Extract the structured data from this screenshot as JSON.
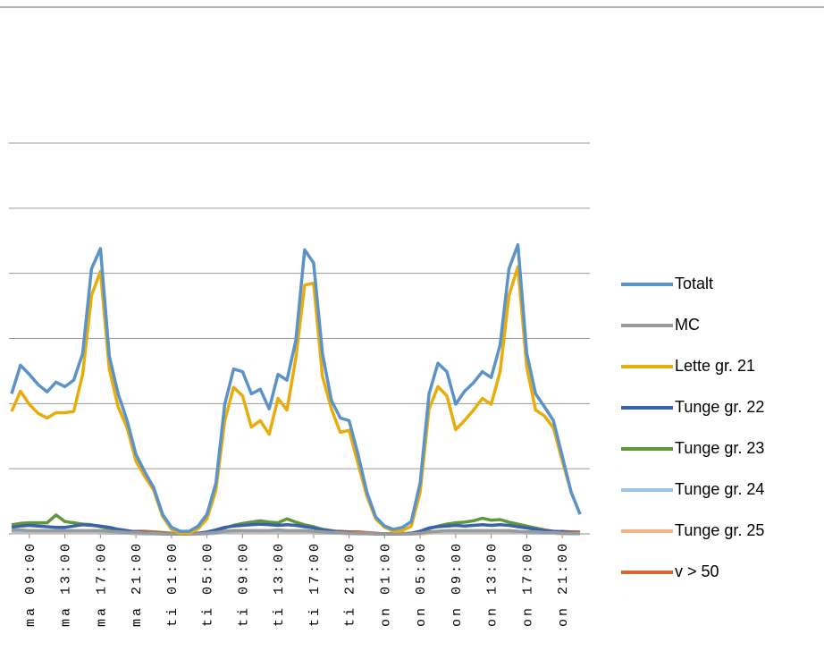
{
  "chart_data": {
    "type": "line",
    "legend": "right",
    "grid": true,
    "categories": [
      null,
      null,
      "ma 09:00",
      null,
      null,
      null,
      "ma 13:00",
      null,
      null,
      null,
      "ma 17:00",
      null,
      null,
      null,
      "ma 21:00",
      null,
      null,
      null,
      "ti 01:00",
      null,
      null,
      null,
      "ti 05:00",
      null,
      null,
      null,
      "ti 09:00",
      null,
      null,
      null,
      "ti 13:00",
      null,
      null,
      null,
      "ti 17:00",
      null,
      null,
      null,
      "ti 21:00",
      null,
      null,
      null,
      "on 01:00",
      null,
      null,
      null,
      "on 05:00",
      null,
      null,
      null,
      "on 09:00",
      null,
      null,
      null,
      "on 13:00",
      null,
      null,
      null,
      "on 17:00",
      null,
      null,
      null,
      "on 21:00",
      null,
      null
    ],
    "ylim": [
      0,
      600
    ],
    "yticks": [
      0,
      100,
      200,
      300,
      400,
      500,
      600
    ],
    "series": [
      {
        "name": "Totalt",
        "color": "#5b93c7",
        "values": [
          215,
          259,
          245,
          229,
          218,
          233,
          226,
          236,
          277,
          407,
          438,
          273,
          215,
          174,
          122,
          95,
          71,
          30,
          10,
          4,
          4,
          12,
          30,
          78,
          199,
          253,
          249,
          215,
          222,
          192,
          245,
          236,
          297,
          436,
          416,
          277,
          205,
          178,
          174,
          122,
          64,
          26,
          12,
          7,
          10,
          19,
          78,
          215,
          262,
          249,
          199,
          219,
          232,
          249,
          240,
          290,
          407,
          444,
          277,
          215,
          195,
          174,
          119,
          64,
          30
        ]
      },
      {
        "name": "MC",
        "color": "#9a9a9a",
        "values": [
          6,
          6,
          5,
          5,
          5,
          5,
          5,
          5,
          5,
          5,
          5,
          4,
          3,
          2,
          2,
          1,
          1,
          0,
          0,
          0,
          0,
          0,
          1,
          2,
          4,
          5,
          5,
          5,
          5,
          5,
          6,
          5,
          5,
          5,
          4,
          3,
          2,
          2,
          1,
          1,
          1,
          0,
          0,
          0,
          0,
          0,
          1,
          3,
          4,
          5,
          5,
          5,
          5,
          5,
          5,
          5,
          5,
          4,
          3,
          3,
          2,
          2,
          1,
          1,
          1
        ]
      },
      {
        "name": "Lette gr. 21",
        "color": "#e8ad0c",
        "values": [
          188,
          219,
          199,
          185,
          178,
          186,
          186,
          188,
          245,
          366,
          403,
          253,
          195,
          163,
          112,
          88,
          67,
          27,
          7,
          1,
          1,
          8,
          23,
          67,
          174,
          225,
          212,
          164,
          174,
          153,
          208,
          190,
          270,
          382,
          385,
          242,
          192,
          156,
          159,
          108,
          58,
          23,
          10,
          4,
          5,
          12,
          64,
          192,
          226,
          212,
          160,
          174,
          190,
          208,
          199,
          249,
          366,
          410,
          256,
          190,
          181,
          163,
          112,
          64,
          30
        ]
      },
      {
        "name": "Tunge gr. 22",
        "color": "#3a62a8",
        "values": [
          10,
          12,
          13,
          12,
          11,
          10,
          10,
          12,
          14,
          13,
          12,
          10,
          7,
          5,
          3,
          2,
          1,
          0,
          0,
          0,
          0,
          1,
          3,
          6,
          10,
          12,
          13,
          14,
          15,
          14,
          13,
          14,
          13,
          11,
          9,
          6,
          4,
          3,
          2,
          1,
          1,
          0,
          0,
          0,
          0,
          1,
          4,
          9,
          11,
          12,
          13,
          12,
          13,
          14,
          13,
          14,
          13,
          11,
          9,
          7,
          5,
          4,
          3,
          2,
          1
        ]
      },
      {
        "name": "Tunge gr. 23",
        "color": "#62963c",
        "values": [
          14,
          16,
          17,
          17,
          17,
          29,
          19,
          17,
          15,
          14,
          11,
          8,
          6,
          4,
          3,
          2,
          2,
          1,
          0,
          0,
          0,
          1,
          2,
          5,
          9,
          13,
          16,
          18,
          20,
          18,
          17,
          23,
          18,
          14,
          11,
          7,
          5,
          3,
          2,
          1,
          1,
          0,
          0,
          0,
          0,
          1,
          3,
          8,
          12,
          15,
          17,
          18,
          20,
          24,
          21,
          22,
          18,
          15,
          12,
          9,
          6,
          4,
          3,
          2,
          1
        ]
      },
      {
        "name": "Tunge gr. 24",
        "color": "#9dc3e6",
        "values": [
          3,
          3,
          3,
          3,
          3,
          3,
          3,
          3,
          3,
          3,
          2,
          2,
          1,
          1,
          1,
          0,
          0,
          0,
          0,
          0,
          0,
          0,
          0,
          1,
          2,
          3,
          3,
          3,
          3,
          3,
          3,
          3,
          3,
          3,
          2,
          2,
          1,
          1,
          1,
          0,
          0,
          0,
          0,
          0,
          0,
          0,
          1,
          2,
          3,
          3,
          3,
          3,
          3,
          3,
          3,
          3,
          3,
          2,
          2,
          1,
          1,
          1,
          1,
          0,
          0
        ]
      },
      {
        "name": "Tunge gr. 25",
        "color": "#f4b183",
        "values": [
          2,
          2,
          2,
          2,
          2,
          2,
          2,
          2,
          2,
          2,
          1,
          1,
          1,
          1,
          0,
          0,
          0,
          0,
          0,
          0,
          0,
          0,
          0,
          1,
          2,
          2,
          2,
          2,
          2,
          2,
          2,
          2,
          2,
          2,
          1,
          1,
          1,
          1,
          0,
          0,
          0,
          0,
          0,
          0,
          0,
          0,
          0,
          1,
          2,
          2,
          2,
          2,
          2,
          2,
          2,
          2,
          2,
          2,
          1,
          1,
          1,
          1,
          0,
          0,
          0
        ]
      },
      {
        "name": "v > 50",
        "color": "#d0692b",
        "values": [
          5,
          3,
          2,
          2,
          2,
          2,
          2,
          2,
          2,
          2,
          2,
          2,
          3,
          3,
          4,
          4,
          3,
          2,
          1,
          0,
          0,
          0,
          1,
          2,
          3,
          2,
          2,
          2,
          2,
          2,
          2,
          2,
          2,
          2,
          3,
          3,
          4,
          4,
          3,
          3,
          2,
          1,
          0,
          0,
          0,
          0,
          1,
          2,
          2,
          2,
          2,
          2,
          2,
          2,
          2,
          2,
          2,
          3,
          3,
          3,
          4,
          3,
          4,
          3,
          3
        ]
      }
    ]
  }
}
